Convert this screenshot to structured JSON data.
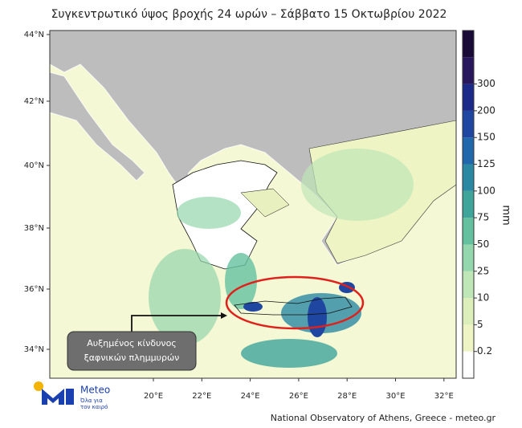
{
  "title": "Συγκεντρωτικό ύψος βροχής 24 ωρών – Σάββατο 15 Οκτωβρίου 2022",
  "map": {
    "lat_labels": [
      "44°N",
      "42°N",
      "40°N",
      "38°N",
      "36°N",
      "34°N"
    ],
    "lon_labels": [
      "20°E",
      "22°E",
      "24°E",
      "26°E",
      "28°E",
      "30°E",
      "32°E"
    ]
  },
  "colorbar": {
    "unit": "mm",
    "ticks": [
      0.2,
      5,
      10,
      25,
      50,
      75,
      100,
      125,
      150,
      200,
      300
    ],
    "colors": [
      "#ffffff",
      "#eef4c4",
      "#dcefbb",
      "#bfe6b6",
      "#94d6ad",
      "#64c09f",
      "#3fa59b",
      "#2a88a3",
      "#2167ac",
      "#1f47a1",
      "#1b2a88",
      "#29175e",
      "#1a0a38"
    ]
  },
  "annotation": {
    "line1": "Αυξημένος κίνδυνος",
    "line2": "ξαφνικών πλημμυρών"
  },
  "logo": {
    "name": "Meteo",
    "tagline1": "Όλα για",
    "tagline2": "τον καιρό"
  },
  "footer": "National Observatory of Athens, Greece - meteo.gr"
}
